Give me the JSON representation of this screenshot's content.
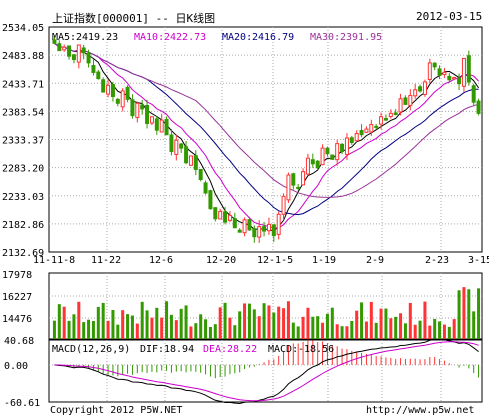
{
  "header": {
    "title": "上证指数[000001] -- 日K线图",
    "date": "2012-03-15"
  },
  "ma_legend": [
    {
      "label": "MA5:",
      "value": "2419.23",
      "color": "#000000"
    },
    {
      "label": "MA10:",
      "value": "2422.73",
      "color": "#cc00cc"
    },
    {
      "label": "MA20:",
      "value": "2416.79",
      "color": "#000080"
    },
    {
      "label": "MA30:",
      "value": "2391.95",
      "color": "#993399"
    }
  ],
  "macd_legend": {
    "params": "MACD(12,26,9)",
    "dif_label": "DIF:",
    "dif_value": "18.94",
    "dif_color": "#000000",
    "dea_label": "DEA:",
    "dea_value": "28.22",
    "dea_color": "#cc00cc",
    "macd_label": "MACD:",
    "macd_value": "-18.56",
    "macd_color": "#000000"
  },
  "footer": {
    "copyright": "Copyright 2012 P5W.NET",
    "url": "http://www.p5w.net"
  },
  "colors": {
    "up": "#ff3333",
    "down": "#339900",
    "grid": "#aaaaaa"
  },
  "chart_data": [
    {
      "type": "candlestick",
      "y_ticks": [
        "2534.05",
        "2483.88",
        "2433.71",
        "2383.54",
        "2333.37",
        "2283.20",
        "2233.03",
        "2182.86",
        "2132.69"
      ],
      "ylim": [
        2132.69,
        2534.05
      ],
      "x_ticks": [
        "11-11-8",
        "11-22",
        "12-6",
        "12-20",
        "12-1-5",
        "1-19",
        "2-9",
        "2-23",
        "3-15"
      ],
      "close_approx": [
        2505,
        2492,
        2498,
        2482,
        2476,
        2502,
        2488,
        2470,
        2453,
        2442,
        2418,
        2430,
        2410,
        2398,
        2420,
        2405,
        2376,
        2398,
        2388,
        2362,
        2374,
        2350,
        2368,
        2342,
        2312,
        2332,
        2318,
        2292,
        2304,
        2280,
        2262,
        2238,
        2210,
        2192,
        2205,
        2186,
        2198,
        2176,
        2168,
        2190,
        2172,
        2160,
        2178,
        2170,
        2182,
        2162,
        2200,
        2232,
        2270,
        2252,
        2246,
        2276,
        2300,
        2290,
        2283,
        2318,
        2308,
        2298,
        2326,
        2312,
        2336,
        2328,
        2344,
        2342,
        2352,
        2360,
        2355,
        2374,
        2368,
        2380,
        2378,
        2406,
        2396,
        2412,
        2422,
        2420,
        2436,
        2470,
        2463,
        2448,
        2453,
        2440,
        2444,
        2433,
        2478,
        2436,
        2400,
        2380
      ]
    },
    {
      "type": "bar",
      "y_ticks": [
        "17978",
        "16227",
        "14476"
      ]
    },
    {
      "type": "macd",
      "y_ticks": [
        "40.68",
        "0.00",
        "-60.61"
      ],
      "ylim": [
        -60.61,
        40.68
      ]
    }
  ]
}
